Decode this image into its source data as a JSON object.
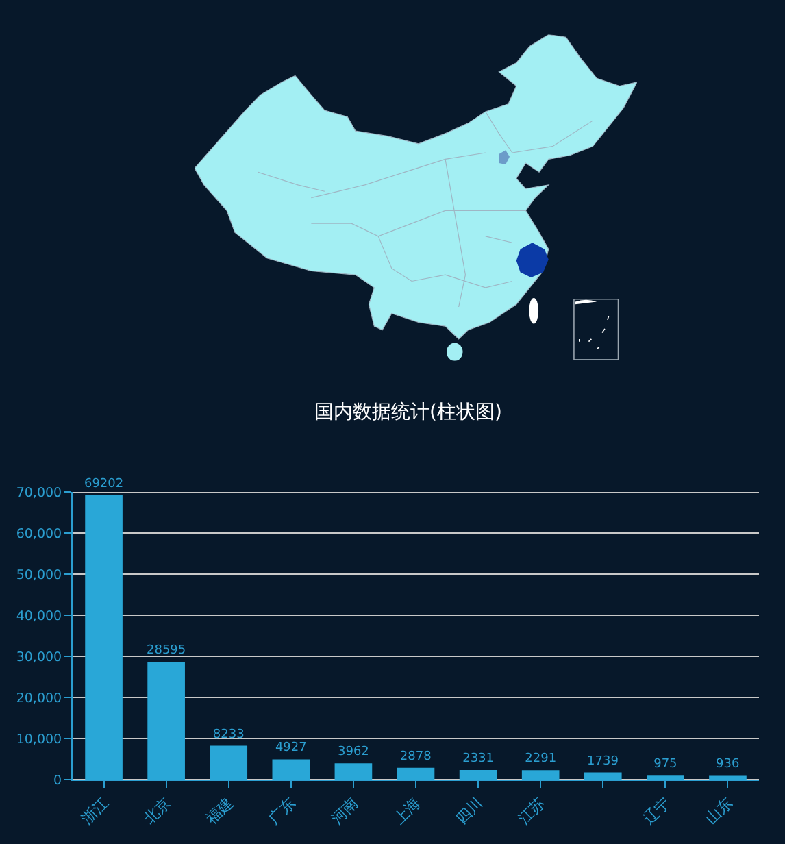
{
  "chart_data": {
    "type": "bar",
    "title": "国内数据统计(柱状图)",
    "categories": [
      "浙江",
      "北京",
      "福建",
      "广东",
      "河南",
      "上海",
      "四川",
      "江苏",
      null,
      "辽宁",
      "山东"
    ],
    "values": [
      69202,
      28595,
      8233,
      4927,
      3962,
      2878,
      2331,
      2291,
      1739,
      975,
      936
    ],
    "color": "#29a7d7",
    "ylim": [
      0,
      70000
    ],
    "yticks": [
      0,
      {
        "value": 10000,
        "label": "10,000"
      },
      {
        "value": 20000,
        "label": "20,000"
      },
      {
        "value": 30000,
        "label": "30,000"
      },
      {
        "value": 40000,
        "label": "40,000"
      },
      {
        "value": 50000,
        "label": "50,000"
      },
      {
        "value": 60000,
        "label": "60,000"
      },
      {
        "value": 70000,
        "label": "70,000"
      }
    ],
    "grid": "y",
    "data_labels": true
  }
}
